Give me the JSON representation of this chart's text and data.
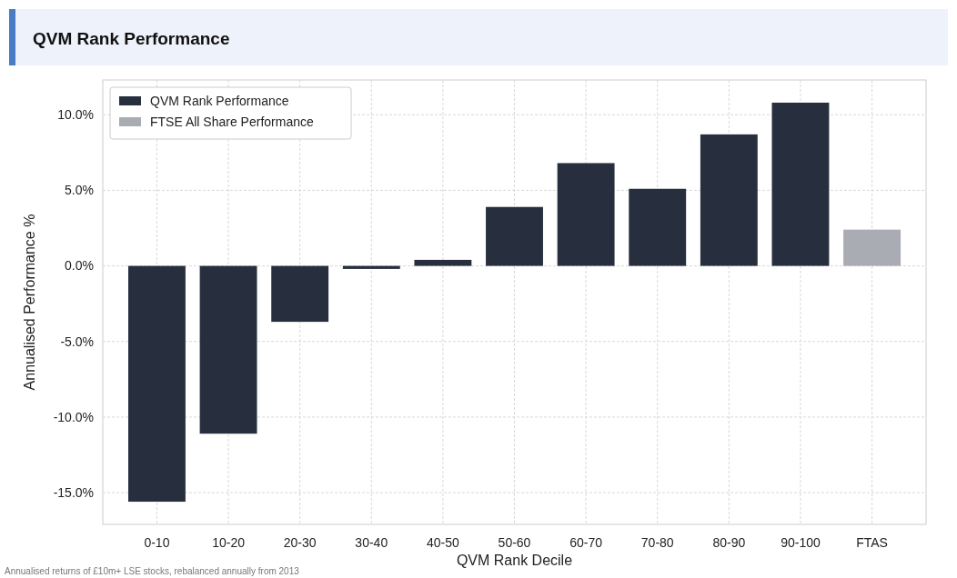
{
  "chart_data": {
    "type": "bar",
    "title": "QVM Rank Performance",
    "xlabel": "QVM Rank Decile",
    "ylabel": "Annualised Performance %",
    "categories": [
      "0-10",
      "10-20",
      "20-30",
      "30-40",
      "40-50",
      "50-60",
      "60-70",
      "70-80",
      "80-90",
      "90-100",
      "FTAS"
    ],
    "series": [
      {
        "name": "QVM Rank Performance",
        "color": "#272f3f",
        "values": [
          -15.6,
          -11.1,
          -3.7,
          -0.2,
          0.4,
          3.9,
          6.8,
          5.1,
          8.7,
          10.8,
          null
        ]
      },
      {
        "name": "FTSE All Share Performance",
        "color": "#a9acb3",
        "values": [
          null,
          null,
          null,
          null,
          null,
          null,
          null,
          null,
          null,
          null,
          2.4
        ]
      }
    ],
    "ylim": [
      -17.1,
      12.3
    ],
    "yticks": [
      {
        "value": -15,
        "label": "-15.0%"
      },
      {
        "value": -10,
        "label": "-10.0%"
      },
      {
        "value": -5,
        "label": "-5.0%"
      },
      {
        "value": 0,
        "label": "0.0%"
      },
      {
        "value": 5,
        "label": "5.0%"
      },
      {
        "value": 10,
        "label": "10.0%"
      }
    ],
    "grid": true,
    "legend": "top left",
    "annotations": [
      "Annualised returns of £10m+ LSE stocks, rebalanced annually from 2013"
    ]
  }
}
